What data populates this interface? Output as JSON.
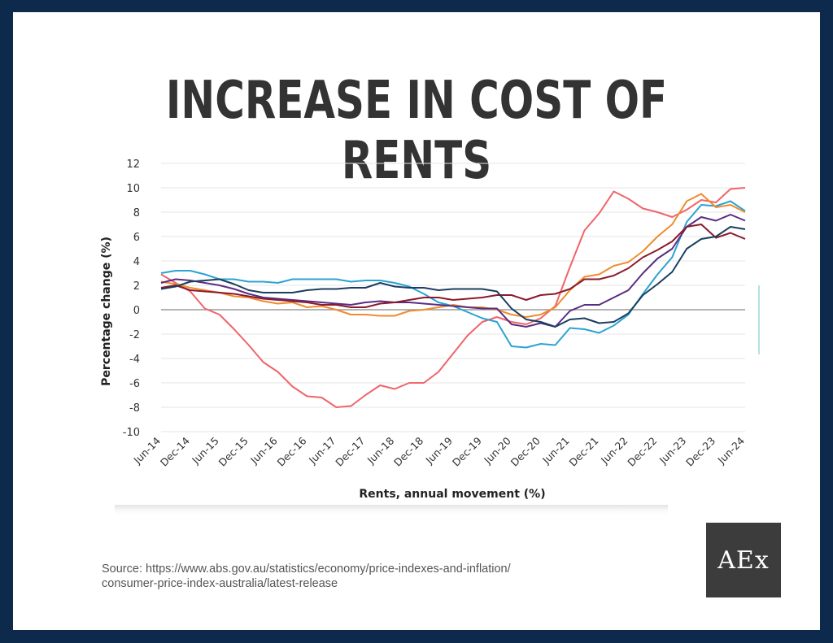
{
  "page": {
    "title": "INCREASE IN COST OF RENTS",
    "source_line1": "Source: https://www.abs.gov.au/statistics/economy/price-indexes-and-inflation/",
    "source_line2": "consumer-price-index-australia/latest-release",
    "logo": "AEx"
  },
  "chart_data": {
    "type": "line",
    "title": "",
    "xlabel": "Rents, annual movement (%)",
    "ylabel": "Percentage change (%)",
    "ylim": [
      -10,
      12
    ],
    "yticks": [
      12,
      10,
      8,
      6,
      4,
      2,
      0,
      -2,
      -4,
      -6,
      -8,
      -10
    ],
    "xticks": [
      "Jun-14",
      "Dec-14",
      "Jun-15",
      "Dec-15",
      "Jun-16",
      "Dec-16",
      "Jun-17",
      "Dec-17",
      "Jun-18",
      "Dec-18",
      "Jun-19",
      "Dec-19",
      "Jun-20",
      "Dec-20",
      "Jun-21",
      "Dec-21",
      "Jun-22",
      "Dec-22",
      "Jun-23",
      "Dec-23",
      "Jun-24"
    ],
    "grid": true,
    "legend": "none",
    "series": [
      {
        "color": "#f0646a",
        "values": [
          2.9,
          2.2,
          1.5,
          0.1,
          -0.4,
          -1.6,
          -2.9,
          -4.3,
          -5.1,
          -6.3,
          -7.1,
          -7.2,
          -8.0,
          -7.9,
          -7.0,
          -6.2,
          -6.5,
          -6.0,
          -6.0,
          -5.1,
          -3.6,
          -2.1,
          -1.0,
          -0.6,
          -1.0,
          -1.2,
          -0.7,
          0.3,
          3.5,
          6.5,
          7.9,
          9.7,
          9.1,
          8.3,
          8.0,
          7.6,
          8.2,
          9.0,
          8.8,
          9.9,
          10.0
        ]
      },
      {
        "color": "#2ba3d3",
        "values": [
          3.0,
          3.2,
          3.2,
          2.9,
          2.5,
          2.5,
          2.3,
          2.3,
          2.2,
          2.5,
          2.5,
          2.5,
          2.5,
          2.3,
          2.4,
          2.4,
          2.2,
          1.9,
          1.3,
          0.6,
          0.3,
          -0.2,
          -0.7,
          -1.0,
          -3.0,
          -3.1,
          -2.8,
          -2.9,
          -1.5,
          -1.6,
          -1.9,
          -1.3,
          -0.4,
          1.3,
          2.9,
          4.3,
          7.2,
          8.6,
          8.5,
          8.9,
          8.1
        ]
      },
      {
        "color": "#ee8c2e",
        "values": [
          2.3,
          2.1,
          1.8,
          1.6,
          1.4,
          1.1,
          1.0,
          0.7,
          0.5,
          0.6,
          0.2,
          0.3,
          0.0,
          -0.4,
          -0.4,
          -0.5,
          -0.5,
          -0.1,
          0.0,
          0.2,
          0.4,
          0.2,
          0.2,
          0.0,
          -0.4,
          -0.6,
          -0.4,
          0.2,
          1.6,
          2.7,
          2.9,
          3.6,
          3.9,
          4.8,
          6.0,
          7.0,
          8.9,
          9.5,
          8.4,
          8.6,
          8.0
        ]
      },
      {
        "color": "#5a2d82",
        "values": [
          2.2,
          2.5,
          2.4,
          2.2,
          2.0,
          1.7,
          1.3,
          1.0,
          0.9,
          0.8,
          0.7,
          0.6,
          0.5,
          0.4,
          0.6,
          0.7,
          0.6,
          0.6,
          0.5,
          0.4,
          0.3,
          0.2,
          0.1,
          0.1,
          -1.2,
          -1.4,
          -1.1,
          -1.4,
          -0.1,
          0.4,
          0.4,
          1.0,
          1.6,
          3.0,
          4.2,
          5.0,
          6.8,
          7.6,
          7.3,
          7.8,
          7.3
        ]
      },
      {
        "color": "#8b1a2d",
        "values": [
          1.8,
          2.0,
          1.6,
          1.5,
          1.4,
          1.3,
          1.1,
          0.9,
          0.8,
          0.7,
          0.6,
          0.4,
          0.4,
          0.2,
          0.2,
          0.5,
          0.6,
          0.8,
          1.0,
          1.0,
          0.8,
          0.9,
          1.0,
          1.2,
          1.2,
          0.8,
          1.2,
          1.3,
          1.7,
          2.5,
          2.5,
          2.8,
          3.4,
          4.3,
          4.9,
          5.6,
          6.8,
          7.0,
          5.9,
          6.3,
          5.8
        ]
      },
      {
        "color": "#1a3e5e",
        "values": [
          1.7,
          1.9,
          2.3,
          2.4,
          2.5,
          2.1,
          1.6,
          1.4,
          1.4,
          1.4,
          1.6,
          1.7,
          1.7,
          1.8,
          1.8,
          2.2,
          1.9,
          1.8,
          1.8,
          1.6,
          1.7,
          1.7,
          1.7,
          1.5,
          0.1,
          -0.8,
          -1.0,
          -1.4,
          -0.8,
          -0.7,
          -1.1,
          -1.0,
          -0.3,
          1.2,
          2.1,
          3.1,
          5.0,
          5.8,
          6.0,
          6.8,
          6.6
        ]
      }
    ]
  }
}
